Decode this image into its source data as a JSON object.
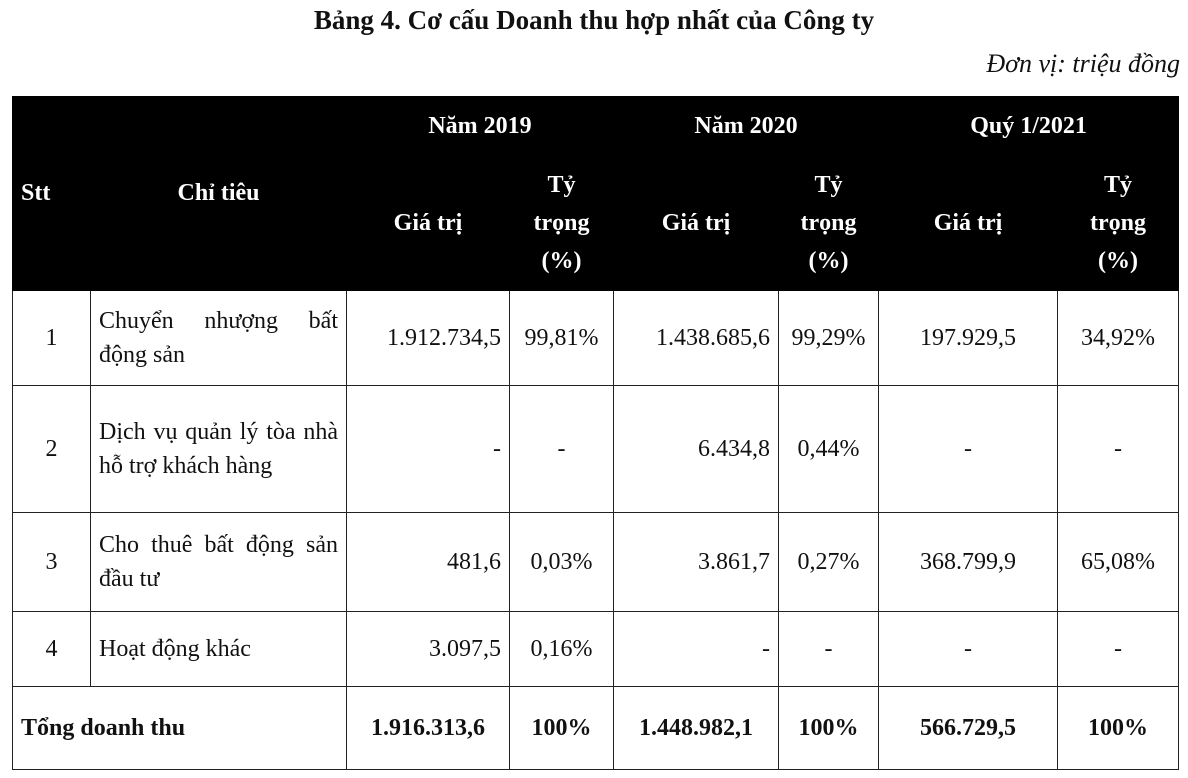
{
  "title": "Bảng 4. Cơ cấu Doanh thu hợp nhất của Công ty",
  "unit": "Đơn vị: triệu đồng",
  "header": {
    "stt": "Stt",
    "indicator": "Chỉ tiêu",
    "periods": [
      "Năm 2019",
      "Năm 2020",
      "Quý 1/2021"
    ],
    "value_label": "Giá trị",
    "share_label_lines": [
      "Tỷ",
      "trọng",
      "(%)"
    ]
  },
  "rows": [
    {
      "stt": "1",
      "indicator": "Chuyển nhượng bất động sản",
      "y2019_value": "1.912.734,5",
      "y2019_share": "99,81%",
      "y2020_value": "1.438.685,6",
      "y2020_share": "99,29%",
      "q1_2021_value": "197.929,5",
      "q1_2021_share": "34,92%"
    },
    {
      "stt": "2",
      "indicator": "Dịch vụ quản lý tòa nhà hỗ trợ khách hàng",
      "y2019_value": "-",
      "y2019_share": "-",
      "y2020_value": "6.434,8",
      "y2020_share": "0,44%",
      "q1_2021_value": "-",
      "q1_2021_share": "-"
    },
    {
      "stt": "3",
      "indicator": "Cho thuê bất động sản đầu tư",
      "y2019_value": "481,6",
      "y2019_share": "0,03%",
      "y2020_value": "3.861,7",
      "y2020_share": "0,27%",
      "q1_2021_value": "368.799,9",
      "q1_2021_share": "65,08%"
    },
    {
      "stt": "4",
      "indicator": "Hoạt động khác",
      "y2019_value": "3.097,5",
      "y2019_share": "0,16%",
      "y2020_value": "-",
      "y2020_share": "-",
      "q1_2021_value": "-",
      "q1_2021_share": "-"
    }
  ],
  "total": {
    "label": "Tổng doanh thu",
    "y2019_value": "1.916.313,6",
    "y2019_share": "100%",
    "y2020_value": "1.448.982,1",
    "y2020_share": "100%",
    "q1_2021_value": "566.729,5",
    "q1_2021_share": "100%"
  }
}
